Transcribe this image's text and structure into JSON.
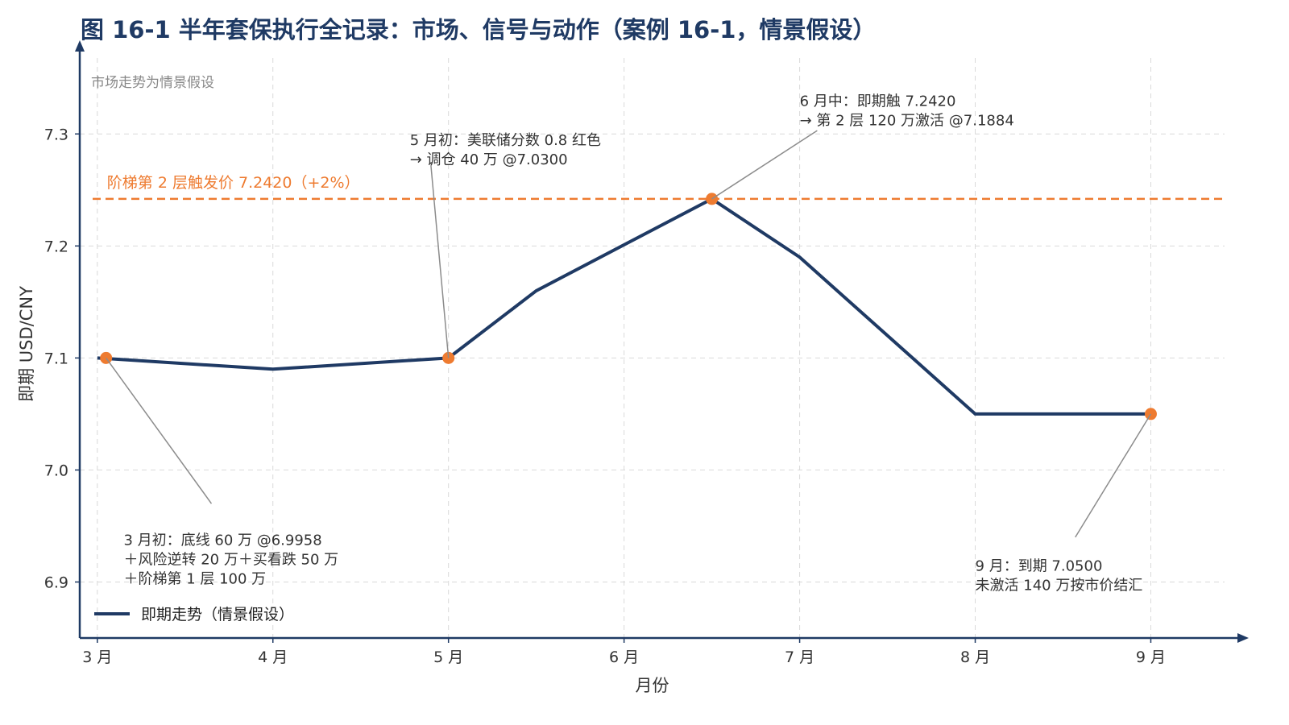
{
  "chart_data": {
    "type": "line",
    "title": "图 16-1 半年套保执行全记录：市场、信号与动作（案例 16-1，情景假设）",
    "xlabel": "月份",
    "ylabel": "即期 USD/CNY",
    "x_tick_labels": [
      "3 月",
      "4 月",
      "5 月",
      "6 月",
      "7 月",
      "8 月",
      "9 月"
    ],
    "x_ticks": [
      3,
      4,
      5,
      6,
      7,
      8,
      9
    ],
    "xlim": [
      2.9,
      9.42
    ],
    "ylim": [
      6.85,
      7.375
    ],
    "y_ticks": [
      6.9,
      7.0,
      7.1,
      7.2,
      7.3
    ],
    "y_tick_labels": [
      "6.9",
      "7.0",
      "7.1",
      "7.2",
      "7.3"
    ],
    "grid": true,
    "corner_note": "市场走势为情景假设",
    "series": [
      {
        "name": "即期走势（情景假设）",
        "color": "#1f3a64",
        "x": [
          3.0,
          4.0,
          5.0,
          5.5,
          6.5,
          7.0,
          8.0,
          9.0
        ],
        "y": [
          7.1,
          7.09,
          7.1,
          7.16,
          7.242,
          7.19,
          7.05,
          7.05
        ]
      }
    ],
    "reference_line": {
      "y": 7.242,
      "label": "阶梯第 2 层触发价 7.2420（+2%）",
      "color": "#ee7b30"
    },
    "markers": {
      "color": "#ee7b30",
      "points": [
        {
          "x": 3.05,
          "y": 7.1
        },
        {
          "x": 5.0,
          "y": 7.1
        },
        {
          "x": 6.5,
          "y": 7.242
        },
        {
          "x": 9.0,
          "y": 7.05
        }
      ]
    },
    "annotations": [
      {
        "lines": [
          "3 月初：底线 60 万 @6.9958",
          "＋风险逆转 20 万＋买看跌 50 万",
          "＋阶梯第 1 层 100 万"
        ],
        "point": {
          "x": 3.05,
          "y": 7.1
        },
        "text_at": {
          "x": 3.15,
          "y": 6.933
        },
        "leader_end": {
          "x": 3.65,
          "y": 6.97
        }
      },
      {
        "lines": [
          "5 月初：美联储分数 0.8 红色",
          "→ 调仓 40 万 @7.0300"
        ],
        "point": {
          "x": 5.0,
          "y": 7.1
        },
        "text_at": {
          "x": 4.78,
          "y": 7.29
        },
        "leader_end": {
          "x": 4.9,
          "y": 7.272
        }
      },
      {
        "lines": [
          "6 月中：即期触 7.2420",
          "→ 第 2 层 120 万激活 @7.1884"
        ],
        "point": {
          "x": 6.5,
          "y": 7.242
        },
        "text_at": {
          "x": 7.0,
          "y": 7.325
        },
        "leader_end": {
          "x": 7.1,
          "y": 7.303
        }
      },
      {
        "lines": [
          "9 月：到期 7.0500",
          "未激活 140 万按市价结汇"
        ],
        "point": {
          "x": 9.0,
          "y": 7.05
        },
        "text_at": {
          "x": 8.0,
          "y": 6.91
        },
        "leader_end": {
          "x": 8.57,
          "y": 6.94
        }
      }
    ],
    "legend": {
      "position": "bottom-left",
      "entries": [
        "即期走势（情景假设）"
      ]
    }
  }
}
